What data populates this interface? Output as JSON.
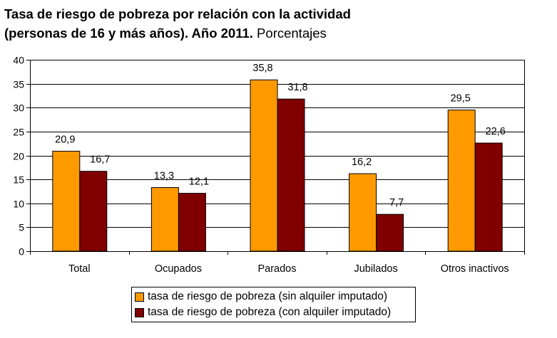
{
  "title": {
    "line1": "Tasa de riesgo de pobreza por relación con la actividad",
    "line2_bold": "(personas de 16 y más años). Año 2011.",
    "line2_normal": " Porcentajes"
  },
  "colors": {
    "series1": "#FF9900",
    "series2": "#800000",
    "grid": "#000000",
    "background": "#FFFFFF"
  },
  "chart_data": {
    "type": "bar",
    "categories": [
      "Total",
      "Ocupados",
      "Parados",
      "Jubilados",
      "Otros inactivos"
    ],
    "series": [
      {
        "name": "tasa de riesgo de pobreza (sin alquiler imputado)",
        "values": [
          20.9,
          13.3,
          35.8,
          16.2,
          29.5
        ],
        "labels": [
          "20,9",
          "13,3",
          "35,8",
          "16,2",
          "29,5"
        ]
      },
      {
        "name": "tasa de riesgo de pobreza (con alquiler imputado)",
        "values": [
          16.7,
          12.1,
          31.8,
          7.7,
          22.6
        ],
        "labels": [
          "16,7",
          "12,1",
          "31,8",
          "7,7",
          "22,6"
        ]
      }
    ],
    "ylim": [
      0,
      40
    ],
    "yticks": [
      0,
      5,
      10,
      15,
      20,
      25,
      30,
      35,
      40
    ],
    "grid": true,
    "legend_position": "bottom",
    "xlabel": "",
    "ylabel": ""
  }
}
